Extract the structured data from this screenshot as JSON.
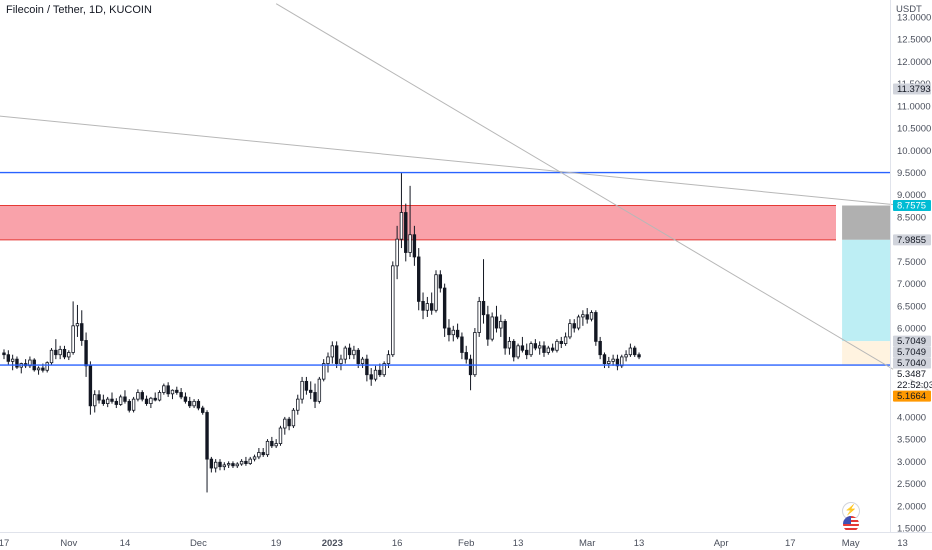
{
  "header": {
    "title": "Filecoin / Tether, 1D, KUCOIN"
  },
  "currency_label": "USDT",
  "countdown": "22:52:03",
  "icons": {
    "lightning": "lightning-icon",
    "flag": "us-flag-icon"
  },
  "colors": {
    "up": "#131722",
    "down": "#131722",
    "hline": "#2962ff",
    "supply_zone": "#f7838d",
    "target_zone": "#b2ebf2",
    "entry_zone": "#fff3e0",
    "trendline": "#b7b7b7"
  },
  "chart_data": {
    "type": "candlestick",
    "title": "Filecoin / Tether, 1D, KUCOIN",
    "y_unit": "USDT",
    "ylim": [
      1.5,
      13.0
    ],
    "y_ticks": [
      "13.0000",
      "12.5000",
      "12.0000",
      "11.5000",
      "11.0000",
      "10.5000",
      "10.0000",
      "9.5000",
      "9.0000",
      "8.5000",
      "8.0000",
      "7.5000",
      "7.0000",
      "6.5000",
      "6.0000",
      "5.5000",
      "5.0000",
      "4.5000",
      "4.0000",
      "3.5000",
      "3.0000",
      "2.5000",
      "2.0000",
      "1.5000"
    ],
    "x_ticks": [
      {
        "label": "17",
        "day": 0
      },
      {
        "label": "Nov",
        "day": 15
      },
      {
        "label": "14",
        "day": 28
      },
      {
        "label": "Dec",
        "day": 45
      },
      {
        "label": "19",
        "day": 63
      },
      {
        "label": "2023",
        "day": 76
      },
      {
        "label": "16",
        "day": 91
      },
      {
        "label": "Feb",
        "day": 107
      },
      {
        "label": "13",
        "day": 119
      },
      {
        "label": "Mar",
        "day": 135
      },
      {
        "label": "13",
        "day": 147
      },
      {
        "label": "Apr",
        "day": 166
      },
      {
        "label": "17",
        "day": 182
      },
      {
        "label": "May",
        "day": 196
      },
      {
        "label": "13",
        "day": 208
      }
    ],
    "horizontal_lines": [
      9.5,
      5.1664
    ],
    "zones": {
      "supply": {
        "low": 7.9855,
        "high": 8.7575
      },
      "target": {
        "low": 5.7049,
        "high": 7.9855,
        "from_day": 194
      },
      "entry": {
        "low": 5.1664,
        "high": 5.7049,
        "from_day": 194
      }
    },
    "price_labels": [
      {
        "text": "11.3793",
        "value": 11.3793,
        "kind": "gray"
      },
      {
        "text": "8.7575",
        "value": 8.7575,
        "kind": "blue"
      },
      {
        "text": "7.9855",
        "value": 7.9855,
        "kind": "gray"
      },
      {
        "text": "5.7049",
        "value": 5.7049,
        "kind": "gray"
      },
      {
        "text": "5.7049",
        "value": 5.7049,
        "kind": "gray"
      },
      {
        "text": "5.7040",
        "value": 5.704,
        "kind": "gray"
      },
      {
        "text": "5.3487",
        "value": 5.3487,
        "kind": "white"
      },
      {
        "text": "5.1664",
        "value": 5.1664,
        "kind": "orange"
      }
    ],
    "trendlines": [
      {
        "from": {
          "day": -4,
          "value": 10.8
        },
        "to": {
          "day": 214,
          "value": 8.7
        }
      },
      {
        "from": {
          "day": 63,
          "value": 13.3
        },
        "to": {
          "day": 214,
          "value": 4.6
        }
      }
    ],
    "candles": [
      {
        "o": 5.44,
        "h": 5.52,
        "l": 5.3,
        "c": 5.4
      },
      {
        "o": 5.4,
        "h": 5.5,
        "l": 5.18,
        "c": 5.25
      },
      {
        "o": 5.25,
        "h": 5.4,
        "l": 5.05,
        "c": 5.3
      },
      {
        "o": 5.3,
        "h": 5.36,
        "l": 5.08,
        "c": 5.12
      },
      {
        "o": 5.12,
        "h": 5.22,
        "l": 4.98,
        "c": 5.2
      },
      {
        "o": 5.2,
        "h": 5.3,
        "l": 5.1,
        "c": 5.15
      },
      {
        "o": 5.15,
        "h": 5.36,
        "l": 5.1,
        "c": 5.28
      },
      {
        "o": 5.28,
        "h": 5.32,
        "l": 5.02,
        "c": 5.06
      },
      {
        "o": 5.06,
        "h": 5.14,
        "l": 4.95,
        "c": 5.1
      },
      {
        "o": 5.1,
        "h": 5.2,
        "l": 5.0,
        "c": 5.05
      },
      {
        "o": 5.05,
        "h": 5.25,
        "l": 5.0,
        "c": 5.22
      },
      {
        "o": 5.22,
        "h": 5.55,
        "l": 5.18,
        "c": 5.5
      },
      {
        "o": 5.5,
        "h": 5.75,
        "l": 5.3,
        "c": 5.4
      },
      {
        "o": 5.4,
        "h": 5.6,
        "l": 5.3,
        "c": 5.52
      },
      {
        "o": 5.52,
        "h": 5.6,
        "l": 5.3,
        "c": 5.35
      },
      {
        "o": 5.35,
        "h": 5.5,
        "l": 5.28,
        "c": 5.45
      },
      {
        "o": 5.45,
        "h": 6.6,
        "l": 5.4,
        "c": 6.05
      },
      {
        "o": 6.05,
        "h": 6.52,
        "l": 5.8,
        "c": 6.1
      },
      {
        "o": 6.1,
        "h": 6.4,
        "l": 5.6,
        "c": 5.72
      },
      {
        "o": 5.72,
        "h": 5.9,
        "l": 4.9,
        "c": 5.15
      },
      {
        "o": 5.15,
        "h": 5.25,
        "l": 4.05,
        "c": 4.25
      },
      {
        "o": 4.25,
        "h": 4.6,
        "l": 4.1,
        "c": 4.5
      },
      {
        "o": 4.5,
        "h": 4.6,
        "l": 4.3,
        "c": 4.38
      },
      {
        "o": 4.38,
        "h": 4.5,
        "l": 4.25,
        "c": 4.3
      },
      {
        "o": 4.3,
        "h": 4.45,
        "l": 4.22,
        "c": 4.4
      },
      {
        "o": 4.4,
        "h": 4.55,
        "l": 4.3,
        "c": 4.35
      },
      {
        "o": 4.35,
        "h": 4.42,
        "l": 4.2,
        "c": 4.28
      },
      {
        "o": 4.28,
        "h": 4.5,
        "l": 4.25,
        "c": 4.45
      },
      {
        "o": 4.45,
        "h": 4.6,
        "l": 4.3,
        "c": 4.35
      },
      {
        "o": 4.35,
        "h": 4.4,
        "l": 4.1,
        "c": 4.15
      },
      {
        "o": 4.15,
        "h": 4.45,
        "l": 4.1,
        "c": 4.4
      },
      {
        "o": 4.4,
        "h": 4.62,
        "l": 4.35,
        "c": 4.55
      },
      {
        "o": 4.55,
        "h": 4.6,
        "l": 4.35,
        "c": 4.4
      },
      {
        "o": 4.4,
        "h": 4.48,
        "l": 4.25,
        "c": 4.3
      },
      {
        "o": 4.3,
        "h": 4.45,
        "l": 4.2,
        "c": 4.42
      },
      {
        "o": 4.42,
        "h": 4.55,
        "l": 4.35,
        "c": 4.38
      },
      {
        "o": 4.38,
        "h": 4.6,
        "l": 4.35,
        "c": 4.55
      },
      {
        "o": 4.55,
        "h": 4.75,
        "l": 4.5,
        "c": 4.7
      },
      {
        "o": 4.7,
        "h": 4.78,
        "l": 4.45,
        "c": 4.52
      },
      {
        "o": 4.52,
        "h": 4.62,
        "l": 4.4,
        "c": 4.6
      },
      {
        "o": 4.6,
        "h": 4.68,
        "l": 4.5,
        "c": 4.55
      },
      {
        "o": 4.55,
        "h": 4.65,
        "l": 4.4,
        "c": 4.45
      },
      {
        "o": 4.45,
        "h": 4.55,
        "l": 4.3,
        "c": 4.35
      },
      {
        "o": 4.35,
        "h": 4.45,
        "l": 4.2,
        "c": 4.25
      },
      {
        "o": 4.25,
        "h": 4.4,
        "l": 4.2,
        "c": 4.35
      },
      {
        "o": 4.35,
        "h": 4.4,
        "l": 4.15,
        "c": 4.2
      },
      {
        "o": 4.2,
        "h": 4.25,
        "l": 4.05,
        "c": 4.1
      },
      {
        "o": 4.1,
        "h": 4.15,
        "l": 2.3,
        "c": 3.05
      },
      {
        "o": 3.05,
        "h": 3.1,
        "l": 2.75,
        "c": 2.85
      },
      {
        "o": 2.85,
        "h": 3.05,
        "l": 2.75,
        "c": 2.98
      },
      {
        "o": 2.98,
        "h": 3.05,
        "l": 2.8,
        "c": 2.88
      },
      {
        "o": 2.88,
        "h": 2.98,
        "l": 2.8,
        "c": 2.92
      },
      {
        "o": 2.92,
        "h": 3.0,
        "l": 2.85,
        "c": 2.95
      },
      {
        "o": 2.95,
        "h": 3.0,
        "l": 2.85,
        "c": 2.9
      },
      {
        "o": 2.9,
        "h": 2.98,
        "l": 2.85,
        "c": 2.94
      },
      {
        "o": 2.94,
        "h": 3.05,
        "l": 2.9,
        "c": 3.0
      },
      {
        "o": 3.0,
        "h": 3.1,
        "l": 2.9,
        "c": 2.95
      },
      {
        "o": 2.95,
        "h": 3.1,
        "l": 2.92,
        "c": 3.05
      },
      {
        "o": 3.05,
        "h": 3.15,
        "l": 3.0,
        "c": 3.1
      },
      {
        "o": 3.1,
        "h": 3.3,
        "l": 3.05,
        "c": 3.2
      },
      {
        "o": 3.2,
        "h": 3.3,
        "l": 3.1,
        "c": 3.15
      },
      {
        "o": 3.15,
        "h": 3.5,
        "l": 3.1,
        "c": 3.45
      },
      {
        "o": 3.45,
        "h": 3.55,
        "l": 3.3,
        "c": 3.35
      },
      {
        "o": 3.35,
        "h": 3.5,
        "l": 3.3,
        "c": 3.4
      },
      {
        "o": 3.4,
        "h": 3.8,
        "l": 3.35,
        "c": 3.75
      },
      {
        "o": 3.75,
        "h": 4.0,
        "l": 3.6,
        "c": 3.95
      },
      {
        "o": 3.95,
        "h": 4.0,
        "l": 3.7,
        "c": 3.8
      },
      {
        "o": 3.8,
        "h": 4.2,
        "l": 3.75,
        "c": 4.15
      },
      {
        "o": 4.15,
        "h": 4.5,
        "l": 4.05,
        "c": 4.4
      },
      {
        "o": 4.4,
        "h": 4.9,
        "l": 4.3,
        "c": 4.8
      },
      {
        "o": 4.8,
        "h": 4.9,
        "l": 4.5,
        "c": 4.6
      },
      {
        "o": 4.6,
        "h": 4.8,
        "l": 4.4,
        "c": 4.55
      },
      {
        "o": 4.55,
        "h": 4.75,
        "l": 4.2,
        "c": 4.35
      },
      {
        "o": 4.35,
        "h": 4.9,
        "l": 4.3,
        "c": 4.85
      },
      {
        "o": 4.85,
        "h": 5.3,
        "l": 4.8,
        "c": 5.2
      },
      {
        "o": 5.2,
        "h": 5.45,
        "l": 5.0,
        "c": 5.35
      },
      {
        "o": 5.35,
        "h": 5.7,
        "l": 5.2,
        "c": 5.6
      },
      {
        "o": 5.6,
        "h": 5.7,
        "l": 5.1,
        "c": 5.2
      },
      {
        "o": 5.2,
        "h": 5.4,
        "l": 5.05,
        "c": 5.3
      },
      {
        "o": 5.3,
        "h": 5.6,
        "l": 5.2,
        "c": 5.55
      },
      {
        "o": 5.55,
        "h": 5.65,
        "l": 5.3,
        "c": 5.4
      },
      {
        "o": 5.4,
        "h": 5.6,
        "l": 5.3,
        "c": 5.5
      },
      {
        "o": 5.5,
        "h": 5.55,
        "l": 5.1,
        "c": 5.2
      },
      {
        "o": 5.2,
        "h": 5.35,
        "l": 5.1,
        "c": 5.3
      },
      {
        "o": 5.3,
        "h": 5.4,
        "l": 4.8,
        "c": 4.95
      },
      {
        "o": 4.95,
        "h": 5.1,
        "l": 4.7,
        "c": 4.85
      },
      {
        "o": 4.85,
        "h": 5.15,
        "l": 4.8,
        "c": 5.05
      },
      {
        "o": 5.05,
        "h": 5.2,
        "l": 4.9,
        "c": 4.95
      },
      {
        "o": 4.95,
        "h": 5.25,
        "l": 4.9,
        "c": 5.2
      },
      {
        "o": 5.2,
        "h": 5.5,
        "l": 5.1,
        "c": 5.4
      },
      {
        "o": 5.4,
        "h": 7.5,
        "l": 5.35,
        "c": 7.4
      },
      {
        "o": 7.4,
        "h": 8.3,
        "l": 7.1,
        "c": 8.0
      },
      {
        "o": 8.0,
        "h": 9.5,
        "l": 7.8,
        "c": 8.6
      },
      {
        "o": 8.6,
        "h": 8.8,
        "l": 7.5,
        "c": 7.7
      },
      {
        "o": 7.7,
        "h": 9.2,
        "l": 7.6,
        "c": 8.1
      },
      {
        "o": 8.1,
        "h": 8.3,
        "l": 7.4,
        "c": 7.6
      },
      {
        "o": 7.6,
        "h": 7.8,
        "l": 6.4,
        "c": 6.6
      },
      {
        "o": 6.6,
        "h": 6.8,
        "l": 6.2,
        "c": 6.4
      },
      {
        "o": 6.4,
        "h": 6.7,
        "l": 6.25,
        "c": 6.55
      },
      {
        "o": 6.55,
        "h": 6.8,
        "l": 6.3,
        "c": 6.4
      },
      {
        "o": 6.4,
        "h": 7.3,
        "l": 6.35,
        "c": 7.2
      },
      {
        "o": 7.2,
        "h": 7.3,
        "l": 6.8,
        "c": 6.9
      },
      {
        "o": 6.9,
        "h": 7.0,
        "l": 5.8,
        "c": 6.0
      },
      {
        "o": 6.0,
        "h": 6.2,
        "l": 5.7,
        "c": 5.85
      },
      {
        "o": 5.85,
        "h": 6.05,
        "l": 5.7,
        "c": 5.95
      },
      {
        "o": 5.95,
        "h": 6.1,
        "l": 5.75,
        "c": 5.8
      },
      {
        "o": 5.8,
        "h": 5.9,
        "l": 5.3,
        "c": 5.45
      },
      {
        "o": 5.45,
        "h": 5.6,
        "l": 5.2,
        "c": 5.3
      },
      {
        "o": 5.3,
        "h": 5.4,
        "l": 4.6,
        "c": 4.95
      },
      {
        "o": 4.95,
        "h": 6.0,
        "l": 4.9,
        "c": 5.9
      },
      {
        "o": 5.9,
        "h": 6.7,
        "l": 5.8,
        "c": 6.6
      },
      {
        "o": 6.6,
        "h": 7.55,
        "l": 6.1,
        "c": 6.3
      },
      {
        "o": 6.3,
        "h": 6.5,
        "l": 5.6,
        "c": 5.75
      },
      {
        "o": 5.75,
        "h": 6.35,
        "l": 5.7,
        "c": 6.25
      },
      {
        "o": 6.25,
        "h": 6.5,
        "l": 5.9,
        "c": 6.0
      },
      {
        "o": 6.0,
        "h": 6.3,
        "l": 5.8,
        "c": 6.15
      },
      {
        "o": 6.15,
        "h": 6.2,
        "l": 5.4,
        "c": 5.55
      },
      {
        "o": 5.55,
        "h": 5.8,
        "l": 5.4,
        "c": 5.7
      },
      {
        "o": 5.7,
        "h": 5.75,
        "l": 5.25,
        "c": 5.35
      },
      {
        "o": 5.35,
        "h": 5.65,
        "l": 5.3,
        "c": 5.6
      },
      {
        "o": 5.6,
        "h": 5.8,
        "l": 5.45,
        "c": 5.5
      },
      {
        "o": 5.5,
        "h": 5.65,
        "l": 5.3,
        "c": 5.4
      },
      {
        "o": 5.4,
        "h": 5.7,
        "l": 5.35,
        "c": 5.65
      },
      {
        "o": 5.65,
        "h": 5.75,
        "l": 5.5,
        "c": 5.55
      },
      {
        "o": 5.55,
        "h": 5.7,
        "l": 5.4,
        "c": 5.6
      },
      {
        "o": 5.6,
        "h": 5.7,
        "l": 5.35,
        "c": 5.45
      },
      {
        "o": 5.45,
        "h": 5.6,
        "l": 5.4,
        "c": 5.55
      },
      {
        "o": 5.55,
        "h": 5.65,
        "l": 5.45,
        "c": 5.5
      },
      {
        "o": 5.5,
        "h": 5.75,
        "l": 5.45,
        "c": 5.7
      },
      {
        "o": 5.7,
        "h": 5.8,
        "l": 5.55,
        "c": 5.65
      },
      {
        "o": 5.65,
        "h": 5.9,
        "l": 5.6,
        "c": 5.8
      },
      {
        "o": 5.8,
        "h": 6.2,
        "l": 5.75,
        "c": 6.1
      },
      {
        "o": 6.1,
        "h": 6.2,
        "l": 5.9,
        "c": 6.0
      },
      {
        "o": 6.0,
        "h": 6.3,
        "l": 5.95,
        "c": 6.25
      },
      {
        "o": 6.25,
        "h": 6.4,
        "l": 6.05,
        "c": 6.3
      },
      {
        "o": 6.3,
        "h": 6.45,
        "l": 6.1,
        "c": 6.2
      },
      {
        "o": 6.2,
        "h": 6.4,
        "l": 6.15,
        "c": 6.35
      },
      {
        "o": 6.35,
        "h": 6.4,
        "l": 5.6,
        "c": 5.7
      },
      {
        "o": 5.7,
        "h": 5.8,
        "l": 5.3,
        "c": 5.4
      },
      {
        "o": 5.4,
        "h": 5.45,
        "l": 5.1,
        "c": 5.2
      },
      {
        "o": 5.2,
        "h": 5.35,
        "l": 5.1,
        "c": 5.25
      },
      {
        "o": 5.25,
        "h": 5.4,
        "l": 5.15,
        "c": 5.3
      },
      {
        "o": 5.3,
        "h": 5.4,
        "l": 5.05,
        "c": 5.15
      },
      {
        "o": 5.15,
        "h": 5.4,
        "l": 5.1,
        "c": 5.35
      },
      {
        "o": 5.35,
        "h": 5.5,
        "l": 5.25,
        "c": 5.4
      },
      {
        "o": 5.4,
        "h": 5.65,
        "l": 5.35,
        "c": 5.55
      },
      {
        "o": 5.55,
        "h": 5.6,
        "l": 5.35,
        "c": 5.4
      },
      {
        "o": 5.4,
        "h": 5.45,
        "l": 5.3,
        "c": 5.35
      }
    ]
  }
}
